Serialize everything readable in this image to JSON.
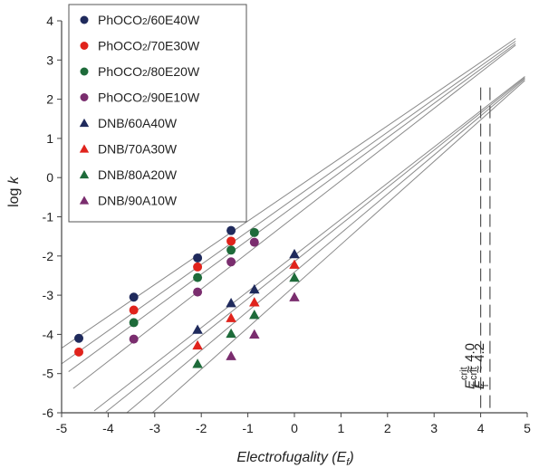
{
  "chart_data": {
    "type": "scatter",
    "xlabel": "Electrofugality",
    "xlabel_symbol": "E",
    "xlabel_sub": "f",
    "ylabel": "log",
    "ylabel_symbol": "k",
    "xlim": [
      -5,
      5
    ],
    "ylim": [
      -6,
      4
    ],
    "x_ticks": [
      "-5",
      "-4",
      "-3",
      "-2",
      "-1",
      "0",
      "1",
      "2",
      "3",
      "4",
      "5"
    ],
    "y_ticks": [
      "-6",
      "-5",
      "-4",
      "-3",
      "-2",
      "-1",
      "0",
      "1",
      "2",
      "3",
      "4"
    ],
    "grid": false,
    "legend_position": "top-left",
    "series": [
      {
        "name": "PhOCO2/60E40W",
        "label_main": "PhOCO",
        "label_sub": "2",
        "label_rest": "/60E40W",
        "marker": "circle",
        "color": "#1f2a5c",
        "x": [
          -4.63,
          -3.45,
          -2.08,
          -1.36
        ],
        "y": [
          -4.1,
          -3.05,
          -2.05,
          -1.35
        ],
        "fit": {
          "x": [
            -5.0,
            4.75
          ],
          "y": [
            -4.35,
            3.55
          ]
        }
      },
      {
        "name": "PhOCO2/70E30W",
        "label_main": "PhOCO",
        "label_sub": "2",
        "label_rest": "/70E30W",
        "marker": "circle",
        "color": "#e0231c",
        "x": [
          -4.63,
          -3.45,
          -2.08,
          -1.36
        ],
        "y": [
          -4.45,
          -3.38,
          -2.28,
          -1.62
        ],
        "fit": {
          "x": [
            -5.0,
            4.75
          ],
          "y": [
            -4.75,
            3.48
          ]
        }
      },
      {
        "name": "PhOCO2/80E20W",
        "label_main": "PhOCO",
        "label_sub": "2",
        "label_rest": "/80E20W",
        "marker": "circle",
        "color": "#1e6b3a",
        "x": [
          -3.45,
          -2.08,
          -1.36,
          -0.86
        ],
        "y": [
          -3.7,
          -2.55,
          -1.85,
          -1.4
        ],
        "fit": {
          "x": [
            -4.85,
            4.75
          ],
          "y": [
            -4.95,
            3.42
          ]
        }
      },
      {
        "name": "PhOCO2/90E10W",
        "label_main": "PhOCO",
        "label_sub": "2",
        "label_rest": "/90E10W",
        "marker": "circle",
        "color": "#7a2d6e",
        "x": [
          -3.45,
          -2.08,
          -1.36,
          -0.86
        ],
        "y": [
          -4.12,
          -2.92,
          -2.15,
          -1.65
        ],
        "fit": {
          "x": [
            -4.75,
            4.75
          ],
          "y": [
            -5.38,
            3.38
          ]
        }
      },
      {
        "name": "DNB/60A40W",
        "label_main": "DNB/60A40W",
        "marker": "triangle",
        "color": "#1f2a5c",
        "x": [
          -2.08,
          -1.36,
          -0.86,
          0.0
        ],
        "y": [
          -3.88,
          -3.2,
          -2.85,
          -1.95
        ],
        "fit": {
          "x": [
            -4.3,
            4.95
          ],
          "y": [
            -5.95,
            2.58
          ]
        }
      },
      {
        "name": "DNB/70A30W",
        "label_main": "DNB/70A30W",
        "marker": "triangle",
        "color": "#e0231c",
        "x": [
          -2.08,
          -1.36,
          -0.86,
          0.0
        ],
        "y": [
          -4.28,
          -3.58,
          -3.18,
          -2.22
        ],
        "fit": {
          "x": [
            -4.05,
            4.95
          ],
          "y": [
            -5.98,
            2.55
          ]
        }
      },
      {
        "name": "DNB/80A20W",
        "label_main": "DNB/80A20W",
        "marker": "triangle",
        "color": "#1e6b3a",
        "x": [
          -2.08,
          -1.36,
          -0.86,
          0.0
        ],
        "y": [
          -4.75,
          -3.98,
          -3.5,
          -2.55
        ],
        "fit": {
          "x": [
            -3.6,
            4.95
          ],
          "y": [
            -6.0,
            2.52
          ]
        }
      },
      {
        "name": "DNB/90A10W",
        "label_main": "DNB/90A10W",
        "marker": "triangle",
        "color": "#7a2d6e",
        "x": [
          -1.36,
          -0.86,
          0.0
        ],
        "y": [
          -4.55,
          -4.0,
          -3.05
        ],
        "fit": {
          "x": [
            -3.05,
            4.95
          ],
          "y": [
            -6.0,
            2.48
          ]
        }
      }
    ],
    "annotations": [
      {
        "symbol": "E",
        "sub": "f",
        "sup": "crit",
        "text": "≈ 4.0",
        "x": 4.0
      },
      {
        "symbol": "E",
        "sub": "f",
        "sup": "crit",
        "text": "≈ 4.2",
        "x": 4.2
      }
    ]
  }
}
